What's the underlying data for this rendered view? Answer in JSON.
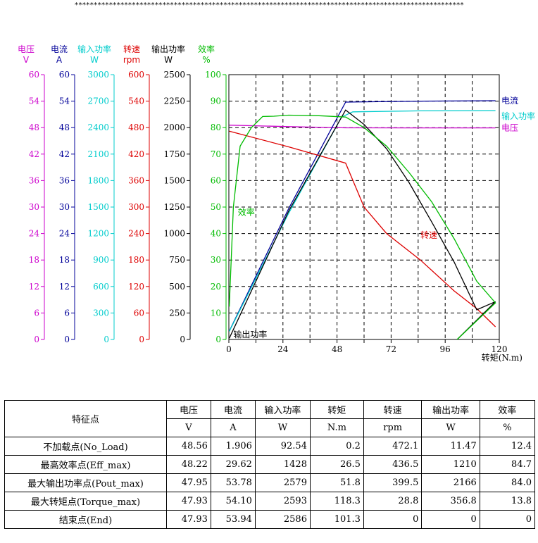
{
  "banner": "******************************************************************************************************",
  "chart_data": {
    "type": "line",
    "xlabel": "转矩(N.m)",
    "x_ticks": [
      0,
      24,
      48,
      72,
      96,
      120
    ],
    "xlim": [
      0,
      120
    ],
    "axes": [
      {
        "name": "电压",
        "unit": "V",
        "color": "#cc00cc",
        "ticks": [
          0,
          6,
          12,
          18,
          24,
          30,
          36,
          42,
          48,
          54,
          60
        ],
        "range": [
          0,
          60
        ]
      },
      {
        "name": "电流",
        "unit": "A",
        "color": "#000099",
        "ticks": [
          0,
          6,
          12,
          18,
          24,
          30,
          36,
          42,
          48,
          54,
          60
        ],
        "range": [
          0,
          60
        ]
      },
      {
        "name": "输入功率",
        "unit": "W",
        "color": "#00cccc",
        "ticks": [
          0,
          300,
          600,
          900,
          1200,
          1500,
          1800,
          2100,
          2400,
          2700,
          3000
        ],
        "range": [
          0,
          3000
        ]
      },
      {
        "name": "转速",
        "unit": "rpm",
        "color": "#dd0000",
        "ticks": [
          0,
          60,
          120,
          180,
          240,
          300,
          360,
          420,
          480,
          540,
          600
        ],
        "range": [
          0,
          600
        ]
      },
      {
        "name": "输出功率",
        "unit": "W",
        "color": "#000000",
        "ticks": [
          0,
          250,
          500,
          750,
          1000,
          1250,
          1500,
          1750,
          2000,
          2250,
          2500
        ],
        "range": [
          0,
          2500
        ]
      },
      {
        "name": "效率",
        "unit": "%",
        "color": "#00bb00",
        "ticks": [
          0,
          10,
          20,
          30,
          40,
          50,
          60,
          70,
          80,
          90,
          100
        ],
        "range": [
          0,
          100
        ]
      }
    ],
    "series": [
      {
        "name": "电压",
        "axis": 0,
        "color": "#cc00cc",
        "label_pos": "right",
        "points": [
          [
            0.2,
            48.56
          ],
          [
            26.5,
            48.22
          ],
          [
            51.8,
            47.95
          ],
          [
            80,
            47.94
          ],
          [
            118.3,
            47.93
          ]
        ]
      },
      {
        "name": "电流",
        "axis": 1,
        "color": "#000099",
        "label_pos": "right",
        "points": [
          [
            0.2,
            1.906
          ],
          [
            26.5,
            29.62
          ],
          [
            51.8,
            53.78
          ],
          [
            85,
            54.0
          ],
          [
            118.3,
            54.1
          ]
        ]
      },
      {
        "name": "输入功率",
        "axis": 2,
        "color": "#00cccc",
        "label_pos": "right",
        "points": [
          [
            0.2,
            92.54
          ],
          [
            26.5,
            1428
          ],
          [
            50,
            2520
          ],
          [
            55,
            2579
          ],
          [
            85,
            2590
          ],
          [
            118.3,
            2593
          ]
        ]
      },
      {
        "name": "转速",
        "axis": 3,
        "color": "#dd0000",
        "label_pos": [
          85,
          230
        ],
        "points": [
          [
            0.2,
            472.1
          ],
          [
            26.5,
            436.5
          ],
          [
            51.8,
            399.5
          ],
          [
            60,
            300
          ],
          [
            70,
            240
          ],
          [
            85,
            180
          ],
          [
            100,
            110
          ],
          [
            110,
            70
          ],
          [
            118.3,
            28.8
          ]
        ]
      },
      {
        "name": "输出功率",
        "axis": 4,
        "color": "#000000",
        "label_pos": [
          2,
          20
        ],
        "points": [
          [
            0.2,
            11.47
          ],
          [
            26.5,
            1210
          ],
          [
            51.8,
            2166
          ],
          [
            60,
            2030
          ],
          [
            70,
            1800
          ],
          [
            80,
            1480
          ],
          [
            90,
            1110
          ],
          [
            100,
            730
          ],
          [
            110,
            280
          ],
          [
            118.3,
            356.8
          ],
          [
            101.3,
            0
          ]
        ]
      },
      {
        "name": "效率",
        "axis": 5,
        "color": "#00bb00",
        "label_pos": [
          4,
          47
        ],
        "points": [
          [
            0.2,
            12.4
          ],
          [
            2,
            50
          ],
          [
            5,
            73
          ],
          [
            10,
            80
          ],
          [
            15,
            84.2
          ],
          [
            20,
            84.3
          ],
          [
            26.5,
            84.7
          ],
          [
            40,
            84.5
          ],
          [
            51.8,
            84.0
          ],
          [
            60,
            80
          ],
          [
            70,
            73
          ],
          [
            80,
            63
          ],
          [
            90,
            52
          ],
          [
            100,
            38
          ],
          [
            110,
            22
          ],
          [
            118.3,
            13.8
          ],
          [
            101.3,
            0
          ]
        ]
      }
    ]
  },
  "table": {
    "col_name": "特征点",
    "headers": [
      "电压",
      "电流",
      "输入功率",
      "转矩",
      "转速",
      "输出功率",
      "效率"
    ],
    "units": [
      "V",
      "A",
      "W",
      "N.m",
      "rpm",
      "W",
      "%"
    ],
    "rows": [
      {
        "name": "不加载点(No_Load)",
        "values": [
          "48.56",
          "1.906",
          "92.54",
          "0.2",
          "472.1",
          "11.47",
          "12.4"
        ]
      },
      {
        "name": "最高效率点(Eff_max)",
        "values": [
          "48.22",
          "29.62",
          "1428",
          "26.5",
          "436.5",
          "1210",
          "84.7"
        ]
      },
      {
        "name": "最大输出功率点(Pout_max)",
        "values": [
          "47.95",
          "53.78",
          "2579",
          "51.8",
          "399.5",
          "2166",
          "84.0"
        ]
      },
      {
        "name": "最大转矩点(Torque_max)",
        "values": [
          "47.93",
          "54.10",
          "2593",
          "118.3",
          "28.8",
          "356.8",
          "13.8"
        ]
      },
      {
        "name": "结束点(End)",
        "values": [
          "47.93",
          "53.94",
          "2586",
          "101.3",
          "0",
          "0",
          "0"
        ]
      }
    ]
  }
}
